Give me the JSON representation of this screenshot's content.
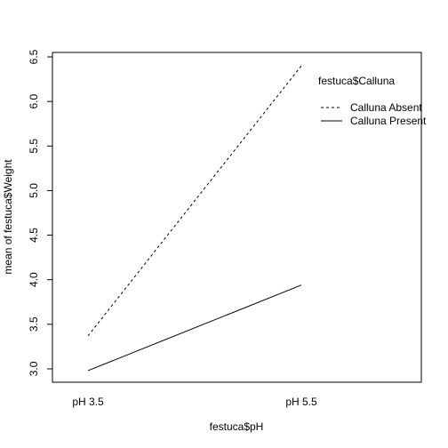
{
  "chart_data": {
    "type": "line",
    "title": "",
    "xlabel": "festuca$pH",
    "ylabel": "mean of festuca$Weight",
    "categories": [
      "pH 3.5",
      "pH 5.5"
    ],
    "ylim": [
      2.85,
      6.55
    ],
    "yticks": [
      3.0,
      3.5,
      4.0,
      4.5,
      5.0,
      5.5,
      6.0,
      6.5
    ],
    "grid": false,
    "legend": {
      "title": "festuca$Calluna",
      "placement": "top-right"
    },
    "series": [
      {
        "name": "Calluna Absent",
        "values": [
          3.37,
          6.4
        ],
        "line_style": "dashed"
      },
      {
        "name": "Calluna Present",
        "values": [
          2.98,
          3.94
        ],
        "line_style": "solid"
      }
    ]
  }
}
